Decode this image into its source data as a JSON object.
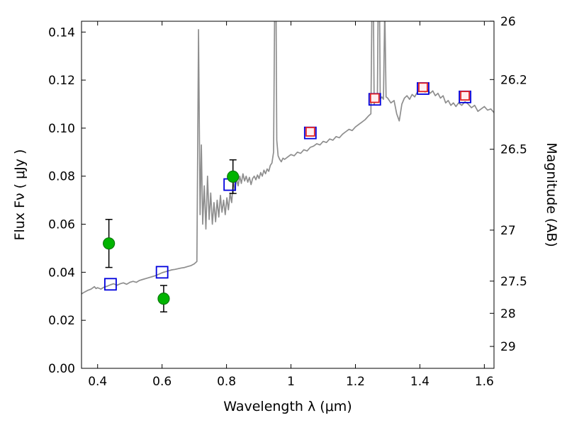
{
  "window": {
    "background": "#ffffff"
  },
  "chart_data": {
    "type": "line",
    "title": "",
    "xlabel": "Wavelength  λ (μm)",
    "ylabel_left": "Flux  Fν  ( μJy )",
    "ylabel_right": "Magnitude (AB)",
    "xlim": [
      0.35,
      1.63
    ],
    "ylim_flux": [
      0.0,
      0.1445
    ],
    "grid": false,
    "legend": "none",
    "x_ticks": [
      0.4,
      0.6,
      0.8,
      1.0,
      1.2,
      1.4,
      1.6
    ],
    "x_tick_labels": [
      "0.4",
      "0.6",
      "0.8",
      "1",
      "1.2",
      "1.4",
      "1.6"
    ],
    "y_ticks_flux": [
      0.0,
      0.02,
      0.04,
      0.06,
      0.08,
      0.1,
      0.12,
      0.14
    ],
    "y_tick_labels_flux": [
      "0.00",
      "0.02",
      "0.04",
      "0.06",
      "0.08",
      "0.10",
      "0.12",
      "0.14"
    ],
    "y_ticks_mag": {
      "labels": [
        "26",
        "26.2",
        "26.5",
        "27",
        "27.5",
        "28",
        "29"
      ],
      "values": [
        26,
        26.2,
        26.5,
        27,
        27.5,
        28,
        29
      ],
      "flux_positions": [
        0.14454,
        0.12023,
        0.0912,
        0.05754,
        0.03631,
        0.02291,
        0.00912
      ]
    },
    "series": [
      {
        "name": "model-spectrum",
        "type": "line",
        "color": "#8e8e8e",
        "x": [
          0.35,
          0.36,
          0.37,
          0.38,
          0.39,
          0.395,
          0.4,
          0.41,
          0.42,
          0.43,
          0.44,
          0.45,
          0.46,
          0.47,
          0.48,
          0.49,
          0.5,
          0.51,
          0.52,
          0.53,
          0.54,
          0.55,
          0.56,
          0.57,
          0.58,
          0.59,
          0.6,
          0.61,
          0.62,
          0.63,
          0.64,
          0.65,
          0.66,
          0.67,
          0.68,
          0.69,
          0.7,
          0.708,
          0.713,
          0.718,
          0.722,
          0.726,
          0.731,
          0.736,
          0.741,
          0.746,
          0.751,
          0.756,
          0.761,
          0.766,
          0.771,
          0.776,
          0.781,
          0.786,
          0.791,
          0.796,
          0.801,
          0.806,
          0.811,
          0.816,
          0.821,
          0.826,
          0.831,
          0.836,
          0.841,
          0.846,
          0.851,
          0.856,
          0.861,
          0.866,
          0.871,
          0.876,
          0.881,
          0.886,
          0.891,
          0.896,
          0.901,
          0.906,
          0.911,
          0.916,
          0.921,
          0.926,
          0.931,
          0.936,
          0.941,
          0.946,
          0.95,
          0.953,
          0.956,
          0.96,
          0.965,
          0.97,
          0.975,
          0.98,
          0.99,
          1.0,
          1.01,
          1.02,
          1.03,
          1.04,
          1.05,
          1.06,
          1.07,
          1.08,
          1.09,
          1.1,
          1.11,
          1.12,
          1.13,
          1.14,
          1.15,
          1.16,
          1.17,
          1.18,
          1.19,
          1.2,
          1.21,
          1.22,
          1.23,
          1.24,
          1.248,
          1.252,
          1.255,
          1.258,
          1.263,
          1.268,
          1.271,
          1.274,
          1.277,
          1.282,
          1.287,
          1.291,
          1.295,
          1.3,
          1.31,
          1.32,
          1.328,
          1.336,
          1.344,
          1.352,
          1.36,
          1.368,
          1.376,
          1.384,
          1.392,
          1.4,
          1.408,
          1.416,
          1.424,
          1.432,
          1.44,
          1.448,
          1.456,
          1.464,
          1.472,
          1.48,
          1.488,
          1.496,
          1.504,
          1.512,
          1.52,
          1.53,
          1.54,
          1.55,
          1.56,
          1.57,
          1.58,
          1.59,
          1.6,
          1.61,
          1.62,
          1.63
        ],
        "y": [
          0.031,
          0.0318,
          0.0325,
          0.033,
          0.034,
          0.0332,
          0.0336,
          0.033,
          0.0338,
          0.0342,
          0.0348,
          0.0352,
          0.0346,
          0.0352,
          0.0356,
          0.035,
          0.0358,
          0.0362,
          0.0358,
          0.0366,
          0.037,
          0.0374,
          0.0378,
          0.0382,
          0.0386,
          0.0392,
          0.0398,
          0.0402,
          0.0406,
          0.041,
          0.0412,
          0.0415,
          0.0418,
          0.042,
          0.0424,
          0.0428,
          0.0435,
          0.0445,
          0.141,
          0.064,
          0.093,
          0.06,
          0.076,
          0.058,
          0.08,
          0.062,
          0.073,
          0.06,
          0.069,
          0.061,
          0.07,
          0.063,
          0.072,
          0.065,
          0.07,
          0.064,
          0.071,
          0.066,
          0.073,
          0.069,
          0.078,
          0.074,
          0.079,
          0.076,
          0.08,
          0.077,
          0.081,
          0.078,
          0.08,
          0.0775,
          0.0795,
          0.0765,
          0.079,
          0.08,
          0.0785,
          0.0805,
          0.079,
          0.0815,
          0.08,
          0.0825,
          0.081,
          0.083,
          0.082,
          0.0845,
          0.0855,
          0.09,
          0.16,
          0.165,
          0.095,
          0.0885,
          0.087,
          0.086,
          0.0875,
          0.087,
          0.088,
          0.089,
          0.0885,
          0.09,
          0.0895,
          0.091,
          0.0905,
          0.092,
          0.0925,
          0.0935,
          0.093,
          0.0945,
          0.094,
          0.0955,
          0.095,
          0.0965,
          0.096,
          0.0975,
          0.0985,
          0.0995,
          0.099,
          0.1005,
          0.1015,
          0.1025,
          0.1035,
          0.105,
          0.106,
          0.16,
          0.165,
          0.11,
          0.112,
          0.111,
          0.16,
          0.165,
          0.112,
          0.113,
          0.112,
          0.15,
          0.113,
          0.1125,
          0.1105,
          0.1115,
          0.106,
          0.103,
          0.11,
          0.1125,
          0.1135,
          0.112,
          0.114,
          0.113,
          0.115,
          0.1155,
          0.1165,
          0.115,
          0.116,
          0.1145,
          0.1155,
          0.1135,
          0.1145,
          0.1125,
          0.1135,
          0.1105,
          0.1115,
          0.1095,
          0.1105,
          0.109,
          0.1105,
          0.1095,
          0.111,
          0.11,
          0.1085,
          0.1095,
          0.107,
          0.108,
          0.109,
          0.1075,
          0.108,
          0.1065
        ]
      },
      {
        "name": "observed-photometry",
        "type": "scatter",
        "marker": "circle",
        "color": "#00b400",
        "edge_color": "#0a7a0a",
        "x": [
          0.435,
          0.605,
          0.82
        ],
        "y": [
          0.052,
          0.029,
          0.0798
        ],
        "yerr": [
          0.01,
          0.0055,
          0.007
        ]
      },
      {
        "name": "model-photometry-blue",
        "type": "scatter",
        "marker": "square-open",
        "color": "#0000dd",
        "x": [
          0.44,
          0.6,
          0.81,
          1.06,
          1.26,
          1.41,
          1.54
        ],
        "y": [
          0.035,
          0.04,
          0.0765,
          0.098,
          0.112,
          0.1165,
          0.113
        ]
      },
      {
        "name": "model-photometry-red",
        "type": "scatter",
        "marker": "square-open",
        "color": "#e32222",
        "fill": "#ffeef0",
        "x": [
          1.06,
          1.26,
          1.41,
          1.54
        ],
        "y": [
          0.0985,
          0.1125,
          0.117,
          0.1135
        ]
      }
    ]
  }
}
